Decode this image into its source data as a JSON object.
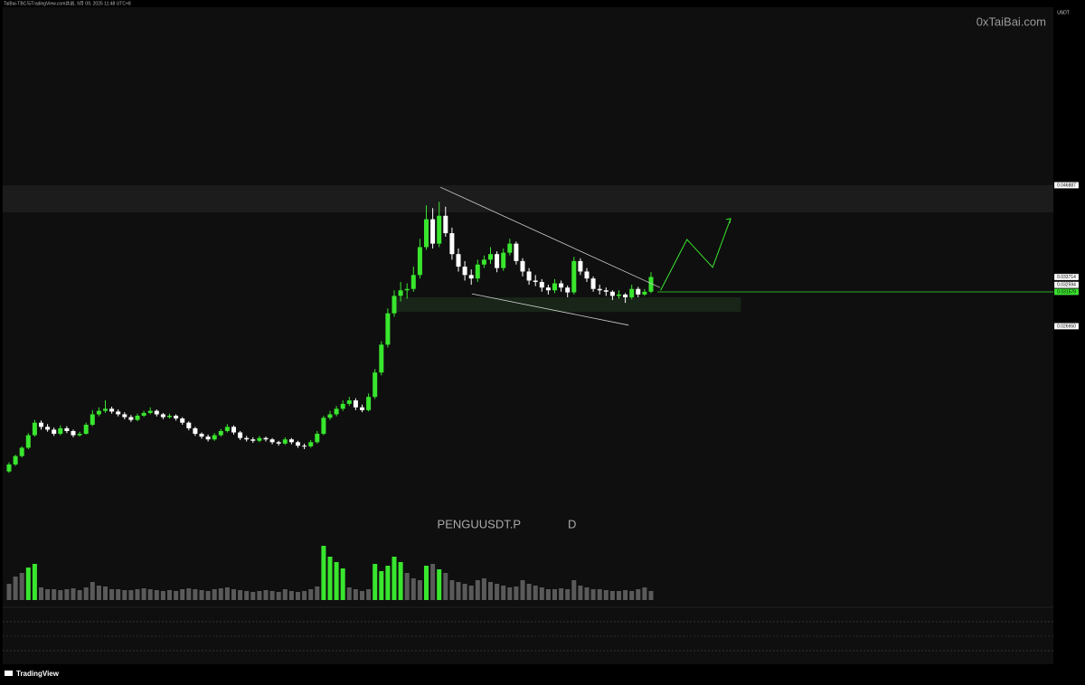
{
  "chart_data": {
    "type": "candlestick",
    "header": "TaiBai-TBC与TradingView.com共创, 9月 09, 2025 11:48 UTC+8",
    "watermark": "0xTaiBai.com",
    "currency": "USDT",
    "symbol": "PENGUUSDT.P",
    "interval": "D",
    "brand": "TradingView",
    "up_color": "#39e62e",
    "down_color": "#ffffff",
    "volume_color": "#5a5a5a",
    "ylim": [
      -0.00436,
      0.07244
    ],
    "yticks": [
      0.046887,
      0.033714,
      0.032594,
      0.031579,
      {
        "value": 0.02665,
        "label": "0.026650"
      }
    ],
    "hline": {
      "value": 0.031579,
      "color": "#39e62e"
    },
    "resistance_zone": [
      0.043,
      0.046887
    ],
    "support_zone": {
      "x": [
        60,
        114
      ],
      "y": [
        0.0287,
        0.0308
      ]
    },
    "trendlines": [
      {
        "x": [
          67.2,
          101.4
        ],
        "y": [
          0.0466,
          0.0322
        ]
      },
      {
        "x": [
          72.1,
          96.5
        ],
        "y": [
          0.0313,
          0.0268
        ]
      }
    ],
    "projection": {
      "color": "#39e62e",
      "x": [
        101.5,
        105.6,
        109.6,
        112.4
      ],
      "y": [
        0.0318,
        0.0391,
        0.0351,
        0.0421
      ]
    },
    "ohlc": [
      [
        0.0058,
        0.0071,
        0.0056,
        0.0068
      ],
      [
        0.0068,
        0.0082,
        0.0066,
        0.008
      ],
      [
        0.008,
        0.0094,
        0.0078,
        0.0092
      ],
      [
        0.0092,
        0.0113,
        0.009,
        0.011
      ],
      [
        0.011,
        0.0132,
        0.0108,
        0.0128
      ],
      [
        0.0128,
        0.0131,
        0.0118,
        0.0122
      ],
      [
        0.0122,
        0.0126,
        0.0115,
        0.0118
      ],
      [
        0.0118,
        0.0121,
        0.0109,
        0.0112
      ],
      [
        0.0112,
        0.0124,
        0.011,
        0.012
      ],
      [
        0.012,
        0.0123,
        0.0113,
        0.0116
      ],
      [
        0.0116,
        0.0118,
        0.0107,
        0.011
      ],
      [
        0.011,
        0.0115,
        0.0108,
        0.0112
      ],
      [
        0.0112,
        0.0128,
        0.0111,
        0.0125
      ],
      [
        0.0125,
        0.0146,
        0.0123,
        0.014
      ],
      [
        0.014,
        0.015,
        0.0137,
        0.0145
      ],
      [
        0.0145,
        0.016,
        0.0142,
        0.0148
      ],
      [
        0.0148,
        0.0151,
        0.0141,
        0.0144
      ],
      [
        0.0144,
        0.0147,
        0.0137,
        0.014
      ],
      [
        0.014,
        0.0143,
        0.0133,
        0.0136
      ],
      [
        0.0136,
        0.0139,
        0.0129,
        0.0132
      ],
      [
        0.0132,
        0.0141,
        0.013,
        0.0138
      ],
      [
        0.0138,
        0.0145,
        0.0136,
        0.0142
      ],
      [
        0.0142,
        0.015,
        0.014,
        0.0145
      ],
      [
        0.0145,
        0.0147,
        0.0137,
        0.014
      ],
      [
        0.014,
        0.0142,
        0.0133,
        0.0136
      ],
      [
        0.0136,
        0.0141,
        0.0134,
        0.0138
      ],
      [
        0.0138,
        0.014,
        0.0131,
        0.0134
      ],
      [
        0.0134,
        0.0136,
        0.0125,
        0.0128
      ],
      [
        0.0128,
        0.013,
        0.0117,
        0.012
      ],
      [
        0.012,
        0.0122,
        0.0109,
        0.0112
      ],
      [
        0.0112,
        0.0114,
        0.0105,
        0.0108
      ],
      [
        0.0108,
        0.0111,
        0.0101,
        0.0104
      ],
      [
        0.0104,
        0.0113,
        0.0102,
        0.011
      ],
      [
        0.011,
        0.0119,
        0.0108,
        0.0116
      ],
      [
        0.0116,
        0.0126,
        0.0114,
        0.0122
      ],
      [
        0.0122,
        0.0124,
        0.0111,
        0.0114
      ],
      [
        0.0114,
        0.0116,
        0.0103,
        0.0106
      ],
      [
        0.0106,
        0.0109,
        0.0101,
        0.0104
      ],
      [
        0.0104,
        0.0107,
        0.0099,
        0.0102
      ],
      [
        0.0102,
        0.0109,
        0.01,
        0.0106
      ],
      [
        0.0106,
        0.0108,
        0.0101,
        0.0104
      ],
      [
        0.0104,
        0.0106,
        0.0097,
        0.01
      ],
      [
        0.01,
        0.0102,
        0.0095,
        0.0098
      ],
      [
        0.0098,
        0.0107,
        0.0096,
        0.0104
      ],
      [
        0.0104,
        0.0106,
        0.0097,
        0.01
      ],
      [
        0.01,
        0.0102,
        0.0092,
        0.0095
      ],
      [
        0.0095,
        0.0098,
        0.009,
        0.0094
      ],
      [
        0.0094,
        0.0103,
        0.0092,
        0.01
      ],
      [
        0.01,
        0.0116,
        0.0098,
        0.0112
      ],
      [
        0.0112,
        0.0138,
        0.011,
        0.0135
      ],
      [
        0.0135,
        0.0145,
        0.0132,
        0.014
      ],
      [
        0.014,
        0.0152,
        0.0137,
        0.0148
      ],
      [
        0.0148,
        0.016,
        0.0145,
        0.0155
      ],
      [
        0.0155,
        0.0165,
        0.0152,
        0.016
      ],
      [
        0.016,
        0.0163,
        0.0146,
        0.015
      ],
      [
        0.015,
        0.0154,
        0.0143,
        0.0146
      ],
      [
        0.0146,
        0.017,
        0.0144,
        0.0165
      ],
      [
        0.0165,
        0.0205,
        0.0162,
        0.02
      ],
      [
        0.02,
        0.0245,
        0.0196,
        0.024
      ],
      [
        0.024,
        0.0292,
        0.0236,
        0.0285
      ],
      [
        0.0285,
        0.0318,
        0.028,
        0.031
      ],
      [
        0.031,
        0.033,
        0.0302,
        0.0318
      ],
      [
        0.0318,
        0.0328,
        0.0306,
        0.032
      ],
      [
        0.032,
        0.0352,
        0.0316,
        0.034
      ],
      [
        0.034,
        0.0392,
        0.0335,
        0.038
      ],
      [
        0.038,
        0.044,
        0.0376,
        0.042
      ],
      [
        0.042,
        0.0436,
        0.0378,
        0.0385
      ],
      [
        0.0385,
        0.0445,
        0.038,
        0.0425
      ],
      [
        0.0425,
        0.0438,
        0.0395,
        0.04
      ],
      [
        0.04,
        0.0408,
        0.0362,
        0.037
      ],
      [
        0.037,
        0.0378,
        0.0345,
        0.0352
      ],
      [
        0.0352,
        0.036,
        0.0332,
        0.034
      ],
      [
        0.034,
        0.0348,
        0.0326,
        0.0335
      ],
      [
        0.0335,
        0.0362,
        0.033,
        0.0355
      ],
      [
        0.0355,
        0.0368,
        0.035,
        0.0362
      ],
      [
        0.0362,
        0.038,
        0.0356,
        0.037
      ],
      [
        0.037,
        0.0374,
        0.0344,
        0.035
      ],
      [
        0.035,
        0.0378,
        0.0346,
        0.0372
      ],
      [
        0.0372,
        0.0392,
        0.0368,
        0.0385
      ],
      [
        0.0385,
        0.0388,
        0.0355,
        0.036
      ],
      [
        0.036,
        0.0364,
        0.0338,
        0.0345
      ],
      [
        0.0345,
        0.035,
        0.0326,
        0.0332
      ],
      [
        0.0332,
        0.034,
        0.0324,
        0.033
      ],
      [
        0.033,
        0.0334,
        0.0316,
        0.0322
      ],
      [
        0.0322,
        0.0326,
        0.0312,
        0.0318
      ],
      [
        0.0318,
        0.0334,
        0.0314,
        0.0328
      ],
      [
        0.0328,
        0.0332,
        0.0316,
        0.0322
      ],
      [
        0.0322,
        0.0325,
        0.0308,
        0.0315
      ],
      [
        0.0315,
        0.0366,
        0.0312,
        0.036
      ],
      [
        0.036,
        0.0364,
        0.034,
        0.0345
      ],
      [
        0.0345,
        0.035,
        0.033,
        0.0335
      ],
      [
        0.0335,
        0.0338,
        0.0316,
        0.032
      ],
      [
        0.032,
        0.0326,
        0.0312,
        0.0318
      ],
      [
        0.0318,
        0.0322,
        0.031,
        0.0316
      ],
      [
        0.0316,
        0.0318,
        0.0304,
        0.031
      ],
      [
        0.031,
        0.0318,
        0.0306,
        0.0312
      ],
      [
        0.0312,
        0.0314,
        0.03,
        0.0308
      ],
      [
        0.0308,
        0.0326,
        0.0305,
        0.032
      ],
      [
        0.032,
        0.0323,
        0.0308,
        0.0312
      ],
      [
        0.0312,
        0.032,
        0.031,
        0.0316
      ],
      [
        0.0316,
        0.0344,
        0.0314,
        0.033714
      ]
    ],
    "volume": [
      18,
      26,
      30,
      36,
      40,
      14,
      12,
      12,
      11,
      12,
      13,
      11,
      14,
      20,
      16,
      15,
      12,
      12,
      11,
      11,
      12,
      13,
      12,
      11,
      10,
      11,
      10,
      12,
      13,
      12,
      11,
      10,
      12,
      13,
      14,
      12,
      11,
      10,
      9,
      10,
      11,
      10,
      9,
      12,
      10,
      9,
      10,
      12,
      15,
      60,
      48,
      42,
      35,
      14,
      12,
      10,
      12,
      40,
      32,
      38,
      48,
      42,
      30,
      24,
      22,
      38,
      40,
      34,
      30,
      22,
      20,
      18,
      16,
      22,
      24,
      20,
      18,
      16,
      14,
      15,
      22,
      18,
      16,
      14,
      12,
      12,
      13,
      12,
      22,
      16,
      14,
      12,
      12,
      11,
      10,
      10,
      11,
      10,
      12,
      14,
      10
    ]
  }
}
